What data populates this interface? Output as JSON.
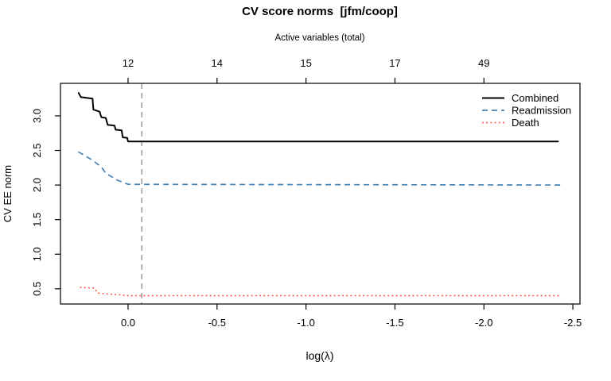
{
  "chart_data": {
    "type": "line",
    "title": "CV score norms  [jfm/coop]",
    "xlabel": "log(λ)",
    "ylabel": "CV EE norm",
    "xlim": [
      0.38,
      -2.54
    ],
    "ylim": [
      0.28,
      3.47
    ],
    "x_axis_reversed": true,
    "grid": false,
    "x_ticks": [
      {
        "x": 0.0,
        "label": "0.0"
      },
      {
        "x": -0.5,
        "label": "-0.5"
      },
      {
        "x": -1.0,
        "label": "-1.0"
      },
      {
        "x": -1.5,
        "label": "-1.5"
      },
      {
        "x": -2.0,
        "label": "-2.0"
      },
      {
        "x": -2.5,
        "label": "-2.5"
      }
    ],
    "y_ticks": [
      {
        "y": 0.5,
        "label": "0.5"
      },
      {
        "y": 1.0,
        "label": "1.0"
      },
      {
        "y": 1.5,
        "label": "1.5"
      },
      {
        "y": 2.0,
        "label": "2.0"
      },
      {
        "y": 2.5,
        "label": "2.5"
      },
      {
        "y": 3.0,
        "label": "3.0"
      }
    ],
    "top_axis": {
      "label": "Active variables (total)",
      "ticks": [
        {
          "x": 0.0,
          "label": "12"
        },
        {
          "x": -0.5,
          "label": "14"
        },
        {
          "x": -1.0,
          "label": "15"
        },
        {
          "x": -1.5,
          "label": "17"
        },
        {
          "x": -2.0,
          "label": "49"
        }
      ]
    },
    "vline": {
      "x": -0.077,
      "color": "#8c8c8c",
      "style": "dashed"
    },
    "series": [
      {
        "name": "Combined",
        "color": "#000000",
        "style": "solid",
        "width": 2.0,
        "points": [
          [
            0.28,
            3.34
          ],
          [
            0.265,
            3.27
          ],
          [
            0.2,
            3.25
          ],
          [
            0.195,
            3.09
          ],
          [
            0.16,
            3.06
          ],
          [
            0.15,
            2.98
          ],
          [
            0.125,
            2.97
          ],
          [
            0.115,
            2.87
          ],
          [
            0.076,
            2.86
          ],
          [
            0.07,
            2.8
          ],
          [
            0.036,
            2.79
          ],
          [
            0.03,
            2.69
          ],
          [
            0.005,
            2.68
          ],
          [
            0.0,
            2.63
          ],
          [
            -2.42,
            2.63
          ]
        ]
      },
      {
        "name": "Readmission",
        "color": "#4682B4",
        "style": "dashed",
        "width": 1.7,
        "points": [
          [
            0.28,
            2.48
          ],
          [
            0.2,
            2.36
          ],
          [
            0.15,
            2.26
          ],
          [
            0.125,
            2.17
          ],
          [
            0.06,
            2.07
          ],
          [
            0.0,
            2.01
          ],
          [
            -2.43,
            2.0
          ]
        ]
      },
      {
        "name": "Death",
        "color": "#FF4136",
        "style": "dotted",
        "width": 1.5,
        "points": [
          [
            0.27,
            0.52
          ],
          [
            0.19,
            0.51
          ],
          [
            0.17,
            0.44
          ],
          [
            0.14,
            0.43
          ],
          [
            0.03,
            0.41
          ],
          [
            0.0,
            0.4
          ],
          [
            -2.43,
            0.4
          ]
        ]
      }
    ],
    "legend": {
      "position": "top-right",
      "entries": [
        "Combined",
        "Readmission",
        "Death"
      ]
    }
  }
}
